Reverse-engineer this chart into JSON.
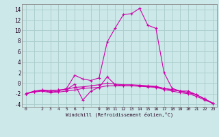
{
  "background_color": "#cce8e8",
  "grid_color": "#aacccc",
  "line_color": "#cc00aa",
  "marker": "+",
  "xlabel": "Windchill (Refroidissement éolien,°C)",
  "xlim": [
    -0.5,
    23.5
  ],
  "ylim": [
    -4.5,
    15.0
  ],
  "yticks": [
    -4,
    -2,
    0,
    2,
    4,
    6,
    8,
    10,
    12,
    14
  ],
  "xticks": [
    0,
    1,
    2,
    3,
    4,
    5,
    6,
    7,
    8,
    9,
    10,
    11,
    12,
    13,
    14,
    15,
    16,
    17,
    18,
    19,
    20,
    21,
    22,
    23
  ],
  "xtick_labels": [
    "0",
    "",
    "2",
    "3",
    "4",
    "5",
    "6",
    "7",
    "",
    "9",
    "10",
    "11",
    "12",
    "13",
    "14",
    "15",
    "16",
    "17",
    "18",
    "19",
    "20",
    "21",
    "22",
    "23"
  ],
  "series": [
    [
      [
        0,
        -2.0
      ],
      [
        1,
        -1.5
      ],
      [
        2,
        -1.3
      ],
      [
        3,
        -1.7
      ],
      [
        4,
        -1.5
      ],
      [
        5,
        -1.0
      ],
      [
        6,
        1.5
      ],
      [
        7,
        0.8
      ],
      [
        8,
        0.5
      ],
      [
        9,
        1.0
      ],
      [
        10,
        7.8
      ],
      [
        11,
        10.5
      ],
      [
        12,
        13.0
      ],
      [
        13,
        13.2
      ],
      [
        14,
        14.2
      ],
      [
        15,
        11.0
      ],
      [
        16,
        10.4
      ],
      [
        17,
        2.0
      ],
      [
        18,
        -1.0
      ],
      [
        19,
        -1.5
      ],
      [
        20,
        -1.5
      ],
      [
        21,
        -2.2
      ],
      [
        22,
        -3.0
      ],
      [
        23,
        -3.8
      ]
    ],
    [
      [
        0,
        -2.0
      ],
      [
        1,
        -1.6
      ],
      [
        2,
        -1.4
      ],
      [
        3,
        -1.5
      ],
      [
        4,
        -1.3
      ],
      [
        5,
        -1.2
      ],
      [
        6,
        -0.2
      ],
      [
        7,
        -3.2
      ],
      [
        8,
        -1.5
      ],
      [
        9,
        -0.8
      ],
      [
        10,
        1.2
      ],
      [
        11,
        -0.3
      ],
      [
        12,
        -0.5
      ],
      [
        13,
        -0.5
      ],
      [
        14,
        -0.6
      ],
      [
        15,
        -0.7
      ],
      [
        16,
        -0.8
      ],
      [
        17,
        -1.2
      ],
      [
        18,
        -1.5
      ],
      [
        19,
        -1.8
      ],
      [
        20,
        -2.0
      ],
      [
        21,
        -2.5
      ],
      [
        22,
        -3.2
      ],
      [
        23,
        -3.8
      ]
    ],
    [
      [
        0,
        -2.0
      ],
      [
        1,
        -1.6
      ],
      [
        2,
        -1.3
      ],
      [
        3,
        -1.4
      ],
      [
        4,
        -1.3
      ],
      [
        5,
        -1.2
      ],
      [
        6,
        -0.8
      ],
      [
        7,
        -0.7
      ],
      [
        8,
        -0.5
      ],
      [
        9,
        -0.3
      ],
      [
        10,
        0.0
      ],
      [
        11,
        -0.2
      ],
      [
        12,
        -0.3
      ],
      [
        13,
        -0.3
      ],
      [
        14,
        -0.4
      ],
      [
        15,
        -0.5
      ],
      [
        16,
        -0.6
      ],
      [
        17,
        -1.0
      ],
      [
        18,
        -1.3
      ],
      [
        19,
        -1.5
      ],
      [
        20,
        -1.8
      ],
      [
        21,
        -2.2
      ],
      [
        22,
        -3.0
      ],
      [
        23,
        -3.8
      ]
    ],
    [
      [
        0,
        -2.0
      ],
      [
        1,
        -1.7
      ],
      [
        2,
        -1.5
      ],
      [
        3,
        -1.8
      ],
      [
        4,
        -1.7
      ],
      [
        5,
        -1.5
      ],
      [
        6,
        -1.3
      ],
      [
        7,
        -1.0
      ],
      [
        8,
        -0.9
      ],
      [
        9,
        -0.8
      ],
      [
        10,
        -0.5
      ],
      [
        11,
        -0.5
      ],
      [
        12,
        -0.5
      ],
      [
        13,
        -0.5
      ],
      [
        14,
        -0.5
      ],
      [
        15,
        -0.6
      ],
      [
        16,
        -0.7
      ],
      [
        17,
        -1.0
      ],
      [
        18,
        -1.2
      ],
      [
        19,
        -1.5
      ],
      [
        20,
        -1.8
      ],
      [
        21,
        -2.2
      ],
      [
        22,
        -3.0
      ],
      [
        23,
        -3.8
      ]
    ]
  ]
}
